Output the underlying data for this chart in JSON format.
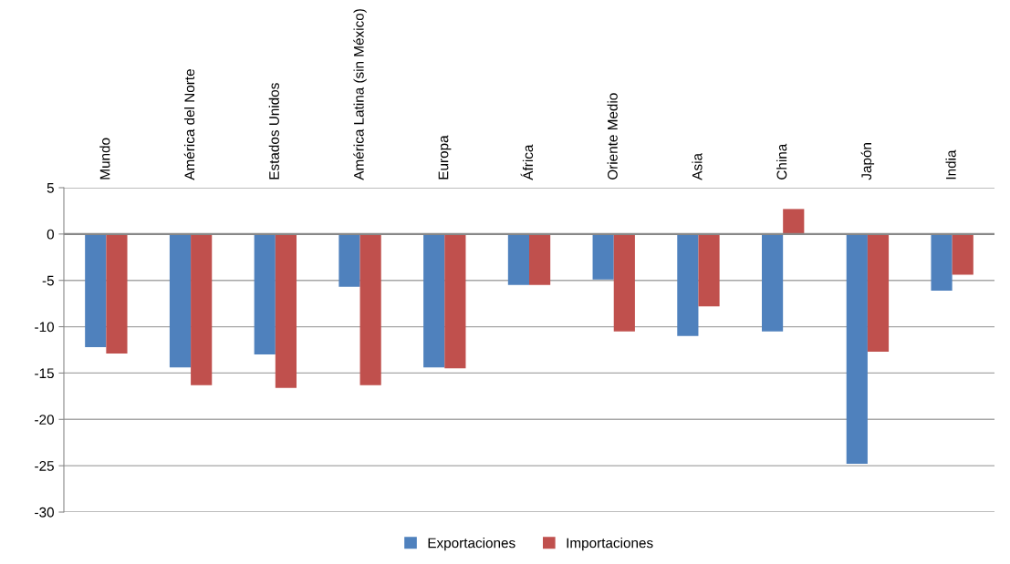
{
  "chart_data": {
    "type": "bar",
    "categories": [
      "Mundo",
      "América del Norte",
      "Estados Unidos",
      "América Latina (sin México)",
      "Europa",
      "África",
      "Oriente Medio",
      "Asia",
      "China",
      "Japón",
      "India"
    ],
    "series": [
      {
        "name": "Exportaciones",
        "color": "#4f81bd",
        "values": [
          -12.2,
          -14.4,
          -13.0,
          -5.7,
          -14.4,
          -5.5,
          -4.9,
          -11.0,
          -10.5,
          -24.8,
          -6.1
        ]
      },
      {
        "name": "Importaciones",
        "color": "#c0504d",
        "values": [
          -12.9,
          -16.3,
          -16.6,
          -16.3,
          -14.5,
          -5.5,
          -10.5,
          -7.8,
          2.7,
          -12.7,
          -4.4
        ]
      }
    ],
    "ylim": [
      -30,
      5
    ],
    "yticks": [
      -30,
      -25,
      -20,
      -15,
      -10,
      -5,
      0,
      5
    ],
    "grid": "y",
    "legend": "bottom"
  }
}
